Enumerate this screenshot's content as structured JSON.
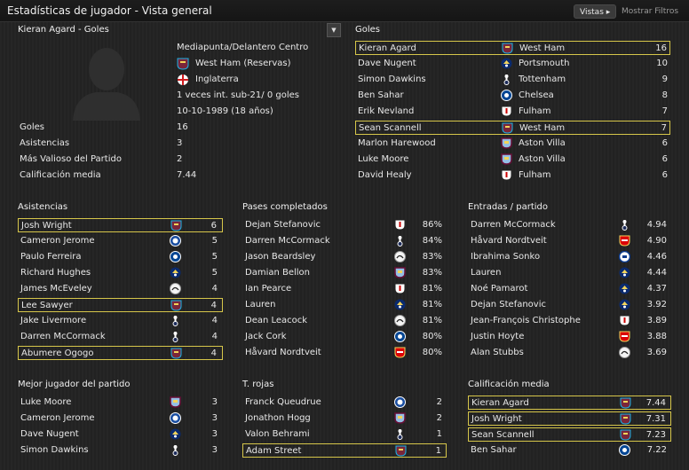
{
  "header": {
    "title": "Estadísticas de jugador - Vista general",
    "vistas_label": "Vistas ▸",
    "mostrar_filtros": "Mostrar Filtros"
  },
  "colors": {
    "highlight": "#d6c64a",
    "background": "#232323",
    "text": "#e8e8e8"
  },
  "player": {
    "section_title": "Kieran Agard - Goles",
    "position": "Mediapunta/Delantero Centro",
    "club": "West Ham (Reservas)",
    "nation": "Inglaterra",
    "caps": "1 veces int. sub-21/ 0 goles",
    "dob": "10-10-1989 (18 años)",
    "stats": [
      {
        "label": "Goles",
        "value": "16"
      },
      {
        "label": "Asistencias",
        "value": "3"
      },
      {
        "label": "Más Valioso del Partido",
        "value": "2"
      },
      {
        "label": "Calificación media",
        "value": "7.44"
      }
    ]
  },
  "goles": {
    "title": "Goles",
    "rows": [
      {
        "name": "Kieran Agard",
        "club": "West Ham",
        "value": "16",
        "badge": "westham",
        "hl": true
      },
      {
        "name": "Dave Nugent",
        "club": "Portsmouth",
        "value": "10",
        "badge": "portsmouth",
        "hl": false
      },
      {
        "name": "Simon Dawkins",
        "club": "Tottenham",
        "value": "9",
        "badge": "tottenham",
        "hl": false
      },
      {
        "name": "Ben Sahar",
        "club": "Chelsea",
        "value": "8",
        "badge": "chelsea",
        "hl": false
      },
      {
        "name": "Erik Nevland",
        "club": "Fulham",
        "value": "7",
        "badge": "fulham",
        "hl": false
      },
      {
        "name": "Sean Scannell",
        "club": "West Ham",
        "value": "7",
        "badge": "westham",
        "hl": true
      },
      {
        "name": "Marlon Harewood",
        "club": "Aston Villa",
        "value": "6",
        "badge": "villa",
        "hl": false
      },
      {
        "name": "Luke Moore",
        "club": "Aston Villa",
        "value": "6",
        "badge": "villa",
        "hl": false
      },
      {
        "name": "David Healy",
        "club": "Fulham",
        "value": "6",
        "badge": "fulham",
        "hl": false
      }
    ]
  },
  "asistencias": {
    "title": "Asistencias",
    "rows": [
      {
        "name": "Josh Wright",
        "value": "6",
        "badge": "westham",
        "hl": true
      },
      {
        "name": "Cameron Jerome",
        "value": "5",
        "badge": "birmingham",
        "hl": false
      },
      {
        "name": "Paulo Ferreira",
        "value": "5",
        "badge": "chelsea",
        "hl": false
      },
      {
        "name": "Richard Hughes",
        "value": "5",
        "badge": "portsmouth",
        "hl": false
      },
      {
        "name": "James McEveley",
        "value": "4",
        "badge": "derby",
        "hl": false
      },
      {
        "name": "Lee Sawyer",
        "value": "4",
        "badge": "westham",
        "hl": true
      },
      {
        "name": "Jake Livermore",
        "value": "4",
        "badge": "tottenham",
        "hl": false
      },
      {
        "name": "Darren McCormack",
        "value": "4",
        "badge": "tottenham",
        "hl": false
      },
      {
        "name": "Abumere Ogogo",
        "value": "4",
        "badge": "westham",
        "hl": true
      }
    ]
  },
  "pases": {
    "title": "Pases completados",
    "rows": [
      {
        "name": "Dejan Stefanovic",
        "value": "86%",
        "badge": "fulham",
        "hl": false
      },
      {
        "name": "Darren McCormack",
        "value": "84%",
        "badge": "tottenham",
        "hl": false
      },
      {
        "name": "Jason Beardsley",
        "value": "83%",
        "badge": "derby",
        "hl": false
      },
      {
        "name": "Damian Bellon",
        "value": "83%",
        "badge": "villa",
        "hl": false
      },
      {
        "name": "Ian Pearce",
        "value": "81%",
        "badge": "fulham",
        "hl": false
      },
      {
        "name": "Lauren",
        "value": "81%",
        "badge": "portsmouth",
        "hl": false
      },
      {
        "name": "Dean Leacock",
        "value": "81%",
        "badge": "derby",
        "hl": false
      },
      {
        "name": "Jack Cork",
        "value": "80%",
        "badge": "chelsea",
        "hl": false
      },
      {
        "name": "Håvard Nordtveit",
        "value": "80%",
        "badge": "arsenal",
        "hl": false
      }
    ]
  },
  "entradas": {
    "title": "Entradas / partido",
    "rows": [
      {
        "name": "Darren McCormack",
        "value": "4.94",
        "badge": "tottenham",
        "hl": false
      },
      {
        "name": "Håvard Nordtveit",
        "value": "4.90",
        "badge": "arsenal",
        "hl": false
      },
      {
        "name": "Ibrahima Sonko",
        "value": "4.46",
        "badge": "reading",
        "hl": false
      },
      {
        "name": "Lauren",
        "value": "4.44",
        "badge": "portsmouth",
        "hl": false
      },
      {
        "name": "Noé Pamarot",
        "value": "4.37",
        "badge": "portsmouth",
        "hl": false
      },
      {
        "name": "Dejan Stefanovic",
        "value": "3.92",
        "badge": "portsmouth",
        "hl": false
      },
      {
        "name": "Jean-François Christophe",
        "value": "3.89",
        "badge": "fulham",
        "hl": false
      },
      {
        "name": "Justin Hoyte",
        "value": "3.88",
        "badge": "arsenal",
        "hl": false
      },
      {
        "name": "Alan Stubbs",
        "value": "3.69",
        "badge": "derby",
        "hl": false
      }
    ]
  },
  "mejor": {
    "title": "Mejor jugador del partido",
    "rows": [
      {
        "name": "Luke Moore",
        "value": "3",
        "badge": "villa",
        "hl": false
      },
      {
        "name": "Cameron Jerome",
        "value": "3",
        "badge": "birmingham",
        "hl": false
      },
      {
        "name": "Dave Nugent",
        "value": "3",
        "badge": "portsmouth",
        "hl": false
      },
      {
        "name": "Simon Dawkins",
        "value": "3",
        "badge": "tottenham",
        "hl": false
      }
    ]
  },
  "rojas": {
    "title": "T. rojas",
    "rows": [
      {
        "name": "Franck Queudrue",
        "value": "2",
        "badge": "birmingham",
        "hl": false
      },
      {
        "name": "Jonathon Hogg",
        "value": "2",
        "badge": "villa",
        "hl": false
      },
      {
        "name": "Valon Behrami",
        "value": "1",
        "badge": "tottenham",
        "hl": false
      },
      {
        "name": "Adam Street",
        "value": "1",
        "badge": "westham",
        "hl": true
      }
    ]
  },
  "calif": {
    "title": "Calificación media",
    "rows": [
      {
        "name": "Kieran Agard",
        "value": "7.44",
        "badge": "westham",
        "hl": true
      },
      {
        "name": "Josh Wright",
        "value": "7.31",
        "badge": "westham",
        "hl": true
      },
      {
        "name": "Sean Scannell",
        "value": "7.23",
        "badge": "westham",
        "hl": true
      },
      {
        "name": "Ben Sahar",
        "value": "7.22",
        "badge": "chelsea",
        "hl": false
      }
    ]
  }
}
